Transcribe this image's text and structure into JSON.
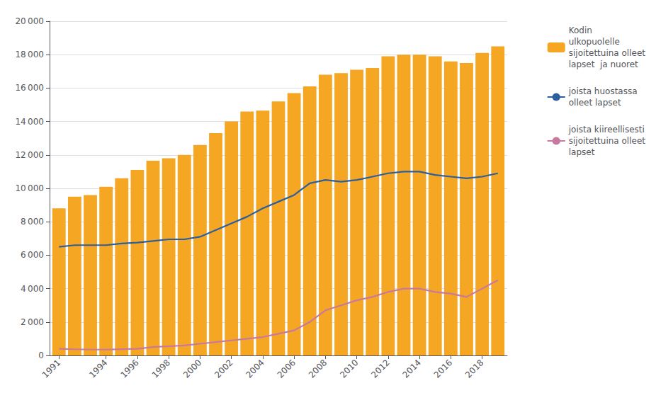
{
  "chart_data": {
    "type": "bar",
    "x": [
      1991,
      1992,
      1993,
      1994,
      1995,
      1996,
      1997,
      1998,
      1999,
      2000,
      2001,
      2002,
      2003,
      2004,
      2005,
      2006,
      2007,
      2008,
      2009,
      2010,
      2011,
      2012,
      2013,
      2014,
      2015,
      2016,
      2017,
      2018,
      2019
    ],
    "series": [
      {
        "name": "Kodin\nulkopuolelle\nsijoitettuina olleet\nlapset  ja nuoret",
        "type": "bar",
        "color": "#F5A623",
        "values": [
          8800,
          9500,
          9600,
          10100,
          10600,
          11100,
          11650,
          11800,
          12000,
          12600,
          13300,
          14000,
          14600,
          14650,
          15200,
          15700,
          16100,
          16800,
          16900,
          17100,
          17200,
          17900,
          18000,
          18000,
          17900,
          17600,
          17500,
          18100,
          18500
        ]
      },
      {
        "name": "joista huostassa\nolleet lapset",
        "type": "line",
        "color": "#2C5F9E",
        "values": [
          6500,
          6600,
          6600,
          6600,
          6700,
          6750,
          6850,
          6950,
          6950,
          7100,
          7500,
          7900,
          8300,
          8800,
          9200,
          9600,
          10300,
          10500,
          10400,
          10500,
          10700,
          10900,
          11000,
          11000,
          10800,
          10700,
          10600,
          10700,
          10900
        ]
      },
      {
        "name": "joista kiireellisesti\nsijoitettuina olleet\nlapset",
        "type": "line",
        "color": "#C879A0",
        "values": [
          400,
          370,
          350,
          350,
          380,
          400,
          500,
          550,
          600,
          700,
          800,
          900,
          1000,
          1100,
          1300,
          1500,
          2000,
          2700,
          3000,
          3300,
          3500,
          3800,
          4000,
          4000,
          3800,
          3700,
          3500,
          4000,
          4500
        ]
      }
    ],
    "xlim": [
      1990.4,
      2019.6
    ],
    "xticks": [
      1991,
      1994,
      1996,
      1998,
      2000,
      2002,
      2004,
      2006,
      2008,
      2010,
      2012,
      2014,
      2016,
      2018
    ],
    "ylim": [
      0,
      20000
    ],
    "yticks": [
      0,
      {
        "value": 2000,
        "label": "2 000"
      },
      {
        "value": 4000,
        "label": "4 000"
      },
      {
        "value": 6000,
        "label": "6 000"
      },
      {
        "value": 8000,
        "label": "8 000"
      },
      {
        "value": 10000,
        "label": "10 000"
      },
      {
        "value": 12000,
        "label": "12 000"
      },
      {
        "value": 14000,
        "label": "14 000"
      },
      {
        "value": 16000,
        "label": "16 000"
      },
      {
        "value": 18000,
        "label": "18 000"
      },
      {
        "value": 20000,
        "label": "20 000"
      }
    ],
    "grid": true,
    "legend": "right"
  }
}
